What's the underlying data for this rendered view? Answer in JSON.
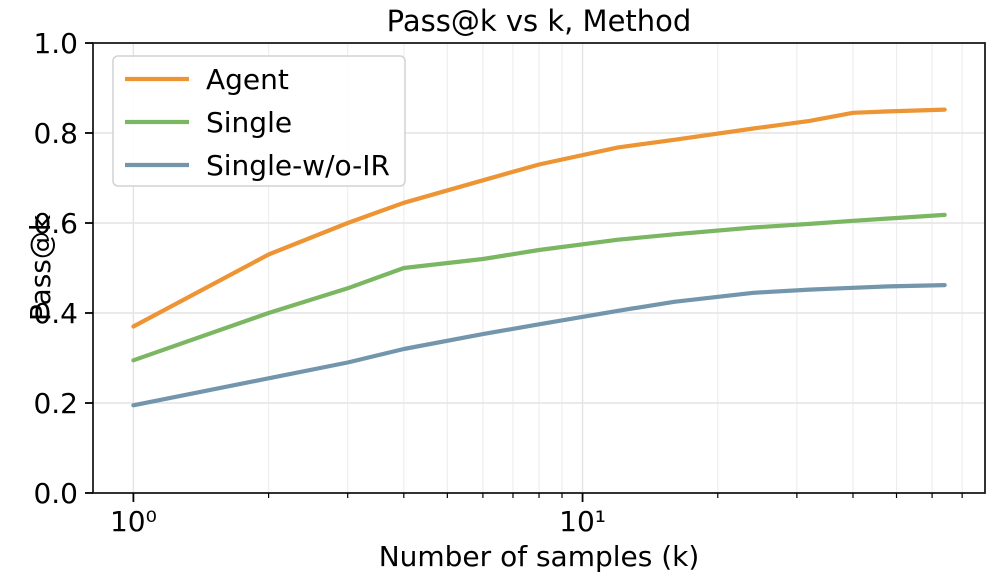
{
  "chart_data": {
    "type": "line",
    "title": "Pass@k vs k, Method",
    "xlabel": "Number of samples (k)",
    "ylabel": "Pass@k",
    "xscale": "log",
    "xlim": [
      0.813,
      78.7
    ],
    "ylim": [
      0.0,
      1.0
    ],
    "grid": true,
    "legend_position": "upper left",
    "x": [
      1,
      2,
      3,
      4,
      6,
      8,
      12,
      16,
      24,
      32,
      40,
      48,
      64
    ],
    "series": [
      {
        "name": "Agent",
        "color": "#ed9434",
        "values": [
          0.37,
          0.53,
          0.6,
          0.645,
          0.695,
          0.73,
          0.768,
          0.785,
          0.81,
          0.827,
          0.845,
          0.848,
          0.852
        ]
      },
      {
        "name": "Single",
        "color": "#7bb662",
        "values": [
          0.295,
          0.4,
          0.455,
          0.5,
          0.52,
          0.54,
          0.563,
          0.575,
          0.59,
          0.598,
          0.605,
          0.61,
          0.618
        ]
      },
      {
        "name": "Single-w/o-IR",
        "color": "#7396ad",
        "values": [
          0.195,
          0.255,
          0.29,
          0.32,
          0.353,
          0.375,
          0.405,
          0.425,
          0.445,
          0.452,
          0.456,
          0.459,
          0.462
        ]
      }
    ],
    "x_major_ticks": {
      "values": [
        1,
        10
      ],
      "labels": [
        "10⁰",
        "10¹"
      ]
    },
    "x_minor_ticks": [
      2,
      3,
      4,
      5,
      6,
      7,
      8,
      9,
      20,
      30,
      40,
      50,
      60,
      70
    ],
    "y_ticks": {
      "values": [
        0.0,
        0.2,
        0.4,
        0.6,
        0.8,
        1.0
      ],
      "labels": [
        "0.0",
        "0.2",
        "0.4",
        "0.6",
        "0.8",
        "1.0"
      ]
    },
    "colors": {
      "spine": "#1c1c1c",
      "tick": "#000000",
      "grid_major": "#e3e3e3",
      "grid_minor": "#eeeeee",
      "legend_border": "#d2d2d2",
      "legend_fill": "#ffffff"
    }
  }
}
